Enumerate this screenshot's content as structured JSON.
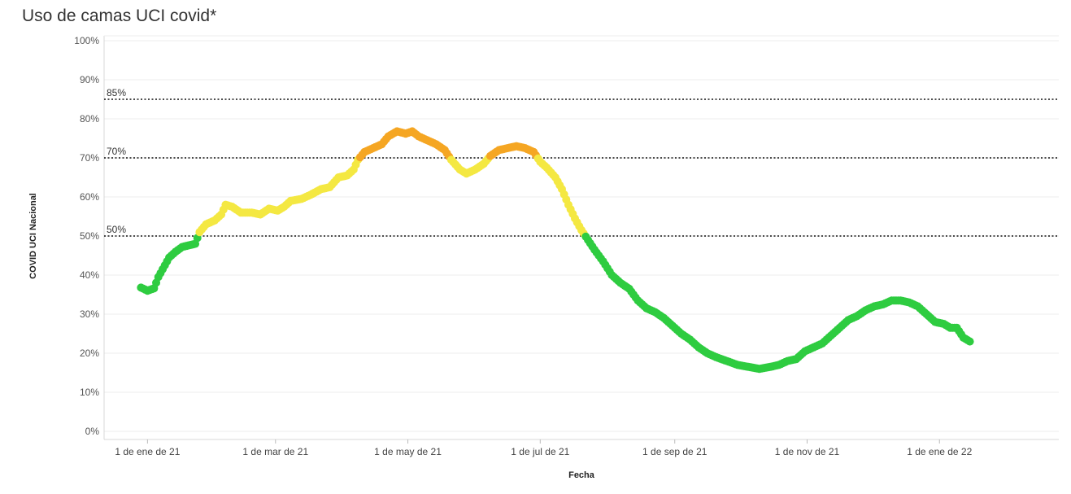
{
  "title": "Uso de camas UCI covid*",
  "chart_data": {
    "type": "scatter",
    "title": "Uso de camas UCI covid*",
    "xlabel": "Fecha",
    "ylabel": "COVID UCI Nacional",
    "x_tick_labels": [
      "1 de ene de 21",
      "1 de mar de 21",
      "1 de may de 21",
      "1 de jul de 21",
      "1 de sep de 21",
      "1 de nov de 21",
      "1 de ene de 22"
    ],
    "y_tick_labels": [
      "0%",
      "10%",
      "20%",
      "30%",
      "40%",
      "50%",
      "60%",
      "70%",
      "80%",
      "90%",
      "100%"
    ],
    "ylim": [
      0,
      100
    ],
    "xlim": [
      "2020-12-12",
      "2022-02-25"
    ],
    "grid": "horizontal",
    "reference_lines": [
      {
        "value": 85,
        "label": "85%"
      },
      {
        "value": 70,
        "label": "70%"
      },
      {
        "value": 50,
        "label": "50%"
      }
    ],
    "color_bands": [
      {
        "range": "below 50%",
        "color": "#2ecc40"
      },
      {
        "range": "50% to 70%",
        "color": "#f4e842"
      },
      {
        "range": "70% and above",
        "color": "#f5a623"
      }
    ],
    "series": [
      {
        "points": [
          [
            "2020-12-29",
            36.8
          ],
          [
            "2021-01-01",
            36.0
          ],
          [
            "2021-01-04",
            36.6
          ],
          [
            "2021-01-06",
            39.5
          ],
          [
            "2021-01-08",
            41.5
          ],
          [
            "2021-01-11",
            44.5
          ],
          [
            "2021-01-14",
            46.0
          ],
          [
            "2021-01-17",
            47.2
          ],
          [
            "2021-01-20",
            47.6
          ],
          [
            "2021-01-23",
            48.0
          ],
          [
            "2021-01-25",
            51.0
          ],
          [
            "2021-01-28",
            53.0
          ],
          [
            "2021-02-01",
            54.0
          ],
          [
            "2021-02-04",
            55.5
          ],
          [
            "2021-02-06",
            58.0
          ],
          [
            "2021-02-09",
            57.5
          ],
          [
            "2021-02-13",
            56.0
          ],
          [
            "2021-02-18",
            56.0
          ],
          [
            "2021-02-22",
            55.5
          ],
          [
            "2021-02-26",
            57.0
          ],
          [
            "2021-03-02",
            56.5
          ],
          [
            "2021-03-05",
            57.5
          ],
          [
            "2021-03-08",
            59.0
          ],
          [
            "2021-03-13",
            59.5
          ],
          [
            "2021-03-17",
            60.5
          ],
          [
            "2021-03-22",
            62.0
          ],
          [
            "2021-03-26",
            62.5
          ],
          [
            "2021-03-30",
            65.0
          ],
          [
            "2021-04-03",
            65.5
          ],
          [
            "2021-04-06",
            67.0
          ],
          [
            "2021-04-08",
            69.5
          ],
          [
            "2021-04-11",
            71.5
          ],
          [
            "2021-04-15",
            72.5
          ],
          [
            "2021-04-19",
            73.5
          ],
          [
            "2021-04-22",
            75.5
          ],
          [
            "2021-04-26",
            76.8
          ],
          [
            "2021-04-30",
            76.2
          ],
          [
            "2021-05-03",
            76.8
          ],
          [
            "2021-05-06",
            75.5
          ],
          [
            "2021-05-10",
            74.5
          ],
          [
            "2021-05-14",
            73.5
          ],
          [
            "2021-05-18",
            72.0
          ],
          [
            "2021-05-21",
            69.5
          ],
          [
            "2021-05-25",
            67.0
          ],
          [
            "2021-05-28",
            66.0
          ],
          [
            "2021-06-01",
            67.0
          ],
          [
            "2021-06-05",
            68.5
          ],
          [
            "2021-06-08",
            70.5
          ],
          [
            "2021-06-12",
            72.0
          ],
          [
            "2021-06-16",
            72.5
          ],
          [
            "2021-06-20",
            73.0
          ],
          [
            "2021-06-24",
            72.5
          ],
          [
            "2021-06-28",
            71.5
          ],
          [
            "2021-07-01",
            69.0
          ],
          [
            "2021-07-04",
            67.5
          ],
          [
            "2021-07-08",
            65.0
          ],
          [
            "2021-07-11",
            62.0
          ],
          [
            "2021-07-14",
            58.0
          ],
          [
            "2021-07-17",
            54.5
          ],
          [
            "2021-07-20",
            51.5
          ],
          [
            "2021-07-23",
            49.0
          ],
          [
            "2021-07-26",
            46.5
          ],
          [
            "2021-07-30",
            43.5
          ],
          [
            "2021-08-03",
            40.0
          ],
          [
            "2021-08-07",
            38.0
          ],
          [
            "2021-08-11",
            36.5
          ],
          [
            "2021-08-15",
            33.5
          ],
          [
            "2021-08-19",
            31.5
          ],
          [
            "2021-08-23",
            30.5
          ],
          [
            "2021-08-27",
            29.0
          ],
          [
            "2021-08-31",
            27.0
          ],
          [
            "2021-09-04",
            25.0
          ],
          [
            "2021-09-08",
            23.5
          ],
          [
            "2021-09-12",
            21.5
          ],
          [
            "2021-09-16",
            20.0
          ],
          [
            "2021-09-20",
            19.0
          ],
          [
            "2021-09-25",
            18.0
          ],
          [
            "2021-09-30",
            17.0
          ],
          [
            "2021-10-05",
            16.5
          ],
          [
            "2021-10-10",
            16.0
          ],
          [
            "2021-10-15",
            16.5
          ],
          [
            "2021-10-19",
            17.0
          ],
          [
            "2021-10-23",
            18.0
          ],
          [
            "2021-10-27",
            18.5
          ],
          [
            "2021-10-31",
            20.5
          ],
          [
            "2021-11-04",
            21.5
          ],
          [
            "2021-11-08",
            22.5
          ],
          [
            "2021-11-12",
            24.5
          ],
          [
            "2021-11-16",
            26.5
          ],
          [
            "2021-11-20",
            28.5
          ],
          [
            "2021-11-24",
            29.5
          ],
          [
            "2021-11-28",
            31.0
          ],
          [
            "2021-12-02",
            32.0
          ],
          [
            "2021-12-06",
            32.5
          ],
          [
            "2021-12-10",
            33.5
          ],
          [
            "2021-12-14",
            33.5
          ],
          [
            "2021-12-18",
            33.0
          ],
          [
            "2021-12-22",
            32.0
          ],
          [
            "2021-12-26",
            30.0
          ],
          [
            "2021-12-30",
            28.0
          ],
          [
            "2022-01-03",
            27.5
          ],
          [
            "2022-01-06",
            26.5
          ],
          [
            "2022-01-09",
            26.5
          ],
          [
            "2022-01-12",
            24.0
          ],
          [
            "2022-01-15",
            23.0
          ]
        ]
      }
    ]
  }
}
